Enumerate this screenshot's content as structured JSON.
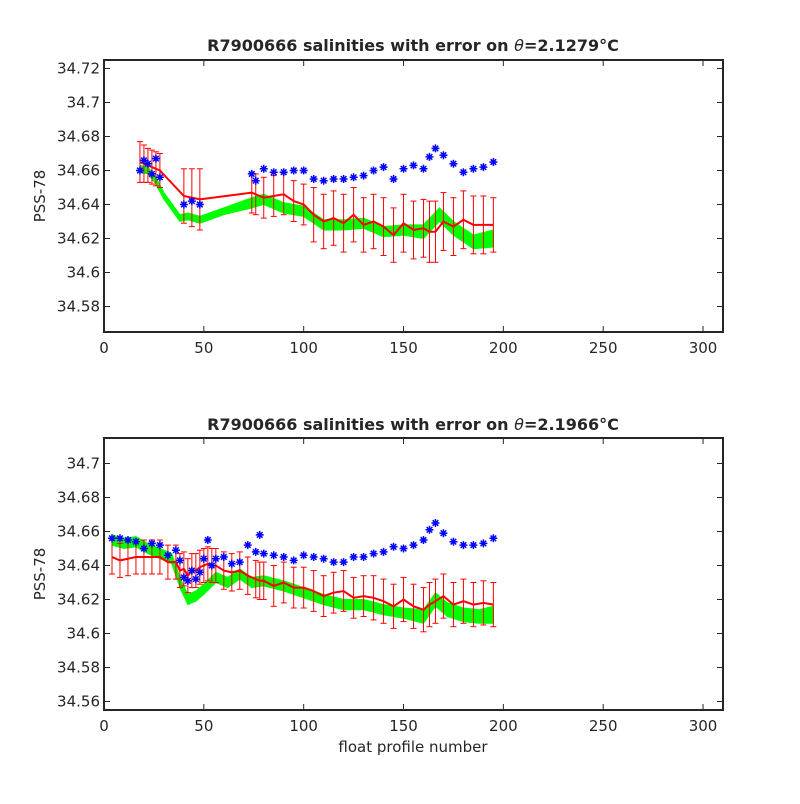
{
  "chart_data": [
    {
      "type": "scatter",
      "title_prefix": "R7900666 salinities with error on ",
      "title_theta": "θ",
      "title_value": "=2.1279",
      "title_unit": "°C",
      "xlabel": "",
      "ylabel": "PSS-78",
      "xlim": [
        0,
        310
      ],
      "ylim": [
        34.565,
        34.725
      ],
      "xticks": [
        0,
        50,
        100,
        150,
        200,
        250,
        300
      ],
      "yticks": [
        34.58,
        34.6,
        34.62,
        34.64,
        34.66,
        34.68,
        34.7,
        34.72
      ],
      "colors": {
        "float": "#0000ff",
        "mapped": "#ff0000",
        "calibrated": "#00ff00",
        "axis": "#262626"
      },
      "series": [
        {
          "key": "float",
          "marker": "asterisk",
          "x": [
            18,
            20,
            22,
            24,
            26,
            28,
            40,
            44,
            48,
            74,
            76,
            80,
            85,
            90,
            95,
            100,
            105,
            110,
            115,
            120,
            125,
            130,
            135,
            140,
            145,
            150,
            155,
            160,
            163,
            166,
            170,
            175,
            180,
            185,
            190,
            195
          ],
          "y": [
            34.66,
            34.666,
            34.664,
            34.658,
            34.667,
            34.656,
            34.64,
            34.642,
            34.64,
            34.658,
            34.654,
            34.661,
            34.659,
            34.659,
            34.66,
            34.66,
            34.655,
            34.654,
            34.655,
            34.655,
            34.656,
            34.657,
            34.66,
            34.662,
            34.655,
            34.661,
            34.663,
            34.661,
            34.668,
            34.673,
            34.669,
            34.664,
            34.659,
            34.661,
            34.662,
            34.665
          ]
        },
        {
          "key": "mapped",
          "marker": "line-errorbar",
          "x": [
            18,
            20,
            22,
            24,
            26,
            28,
            40,
            44,
            48,
            74,
            76,
            80,
            85,
            90,
            95,
            100,
            105,
            110,
            115,
            120,
            125,
            130,
            135,
            140,
            145,
            150,
            155,
            160,
            163,
            166,
            170,
            175,
            180,
            185,
            190,
            195
          ],
          "y": [
            34.665,
            34.664,
            34.663,
            34.662,
            34.661,
            34.66,
            34.645,
            34.644,
            34.643,
            34.647,
            34.646,
            34.644,
            34.645,
            34.646,
            34.642,
            34.64,
            34.634,
            34.63,
            34.632,
            34.629,
            34.634,
            34.628,
            34.63,
            34.627,
            34.622,
            34.629,
            34.625,
            34.626,
            34.624,
            34.624,
            34.63,
            34.627,
            34.631,
            34.628,
            34.628,
            34.628
          ],
          "err": [
            0.012,
            0.011,
            0.01,
            0.01,
            0.01,
            0.01,
            0.016,
            0.017,
            0.018,
            0.012,
            0.012,
            0.012,
            0.012,
            0.012,
            0.012,
            0.012,
            0.016,
            0.016,
            0.016,
            0.017,
            0.016,
            0.016,
            0.016,
            0.017,
            0.016,
            0.017,
            0.017,
            0.017,
            0.018,
            0.018,
            0.017,
            0.017,
            0.017,
            0.017,
            0.017,
            0.016
          ]
        },
        {
          "key": "calibrated",
          "marker": "filled-band",
          "x": [
            18,
            22,
            26,
            30,
            38,
            42,
            48,
            60,
            74,
            80,
            90,
            100,
            110,
            120,
            130,
            140,
            150,
            160,
            168,
            175,
            185,
            195
          ],
          "y": [
            34.661,
            34.66,
            34.654,
            34.645,
            34.632,
            34.633,
            34.631,
            34.636,
            34.641,
            34.643,
            34.638,
            34.636,
            34.628,
            34.628,
            34.629,
            34.624,
            34.625,
            34.624,
            34.634,
            34.626,
            34.618,
            34.62
          ],
          "halfwidth": [
            0.002,
            0.002,
            0.002,
            0.002,
            0.002,
            0.002,
            0.002,
            0.002,
            0.003,
            0.003,
            0.003,
            0.003,
            0.003,
            0.003,
            0.003,
            0.003,
            0.003,
            0.004,
            0.004,
            0.004,
            0.004,
            0.005
          ]
        }
      ]
    },
    {
      "type": "scatter",
      "title_prefix": "R7900666 salinities with error on ",
      "title_theta": "θ",
      "title_value": "=2.1966",
      "title_unit": "°C",
      "xlabel": "float profile number",
      "ylabel": "PSS-78",
      "xlim": [
        0,
        310
      ],
      "ylim": [
        34.555,
        34.715
      ],
      "xticks": [
        0,
        50,
        100,
        150,
        200,
        250,
        300
      ],
      "yticks": [
        34.56,
        34.58,
        34.6,
        34.62,
        34.64,
        34.66,
        34.68,
        34.7
      ],
      "colors": {
        "float": "#0000ff",
        "mapped": "#ff0000",
        "calibrated": "#00ff00",
        "axis": "#262626"
      },
      "series": [
        {
          "key": "float",
          "marker": "asterisk",
          "x": [
            4,
            8,
            12,
            16,
            20,
            24,
            28,
            32,
            36,
            38,
            40,
            42,
            44,
            46,
            48,
            50,
            52,
            54,
            56,
            60,
            64,
            68,
            72,
            76,
            78,
            80,
            85,
            90,
            95,
            100,
            105,
            110,
            115,
            120,
            125,
            130,
            135,
            140,
            145,
            150,
            155,
            160,
            163,
            166,
            170,
            175,
            180,
            185,
            190,
            195
          ],
          "y": [
            34.656,
            34.656,
            34.655,
            34.654,
            34.65,
            34.653,
            34.652,
            34.646,
            34.649,
            34.643,
            34.633,
            34.631,
            34.637,
            34.632,
            34.636,
            34.644,
            34.655,
            34.64,
            34.644,
            34.645,
            34.641,
            34.642,
            34.652,
            34.648,
            34.658,
            34.647,
            34.646,
            34.645,
            34.643,
            34.646,
            34.645,
            34.644,
            34.642,
            34.642,
            34.645,
            34.645,
            34.647,
            34.648,
            34.651,
            34.65,
            34.652,
            34.655,
            34.661,
            34.665,
            34.659,
            34.654,
            34.652,
            34.652,
            34.653,
            34.656
          ]
        },
        {
          "key": "mapped",
          "marker": "line-errorbar",
          "x": [
            4,
            8,
            12,
            16,
            20,
            24,
            28,
            32,
            36,
            38,
            40,
            42,
            44,
            46,
            48,
            50,
            52,
            54,
            56,
            60,
            64,
            68,
            72,
            76,
            78,
            80,
            85,
            90,
            95,
            100,
            105,
            110,
            115,
            120,
            125,
            130,
            135,
            140,
            145,
            150,
            155,
            160,
            163,
            166,
            170,
            175,
            180,
            185,
            190,
            195
          ],
          "y": [
            34.645,
            34.643,
            34.644,
            34.645,
            34.645,
            34.645,
            34.645,
            34.642,
            34.642,
            34.637,
            34.638,
            34.634,
            34.637,
            34.637,
            34.639,
            34.64,
            34.641,
            34.64,
            34.64,
            34.637,
            34.636,
            34.637,
            34.634,
            34.632,
            34.631,
            34.631,
            34.628,
            34.63,
            34.627,
            34.627,
            34.625,
            34.622,
            34.624,
            34.625,
            34.621,
            34.622,
            34.621,
            34.619,
            34.616,
            34.62,
            34.616,
            34.614,
            34.617,
            34.619,
            34.622,
            34.617,
            34.619,
            34.617,
            34.618,
            34.617
          ],
          "err": [
            0.01,
            0.01,
            0.01,
            0.01,
            0.01,
            0.01,
            0.01,
            0.01,
            0.01,
            0.01,
            0.01,
            0.01,
            0.01,
            0.01,
            0.01,
            0.01,
            0.01,
            0.01,
            0.01,
            0.011,
            0.011,
            0.011,
            0.011,
            0.011,
            0.011,
            0.011,
            0.012,
            0.012,
            0.012,
            0.012,
            0.012,
            0.012,
            0.012,
            0.012,
            0.012,
            0.012,
            0.013,
            0.013,
            0.013,
            0.013,
            0.013,
            0.013,
            0.013,
            0.013,
            0.013,
            0.013,
            0.013,
            0.013,
            0.013,
            0.013
          ]
        },
        {
          "key": "calibrated",
          "marker": "filled-band",
          "x": [
            4,
            10,
            16,
            22,
            28,
            34,
            38,
            42,
            46,
            50,
            56,
            62,
            68,
            74,
            80,
            90,
            100,
            110,
            120,
            130,
            140,
            150,
            160,
            166,
            172,
            180,
            188,
            195
          ],
          "y": [
            34.655,
            34.653,
            34.654,
            34.65,
            34.647,
            34.644,
            34.63,
            34.62,
            34.622,
            34.626,
            34.633,
            34.63,
            34.635,
            34.63,
            34.631,
            34.628,
            34.624,
            34.62,
            34.617,
            34.617,
            34.614,
            34.612,
            34.61,
            34.62,
            34.614,
            34.611,
            34.61,
            34.611
          ],
          "halfwidth": [
            0.003,
            0.003,
            0.003,
            0.003,
            0.003,
            0.003,
            0.003,
            0.003,
            0.003,
            0.003,
            0.003,
            0.003,
            0.003,
            0.003,
            0.003,
            0.003,
            0.003,
            0.003,
            0.003,
            0.003,
            0.003,
            0.003,
            0.004,
            0.004,
            0.004,
            0.004,
            0.004,
            0.005
          ]
        }
      ]
    }
  ]
}
